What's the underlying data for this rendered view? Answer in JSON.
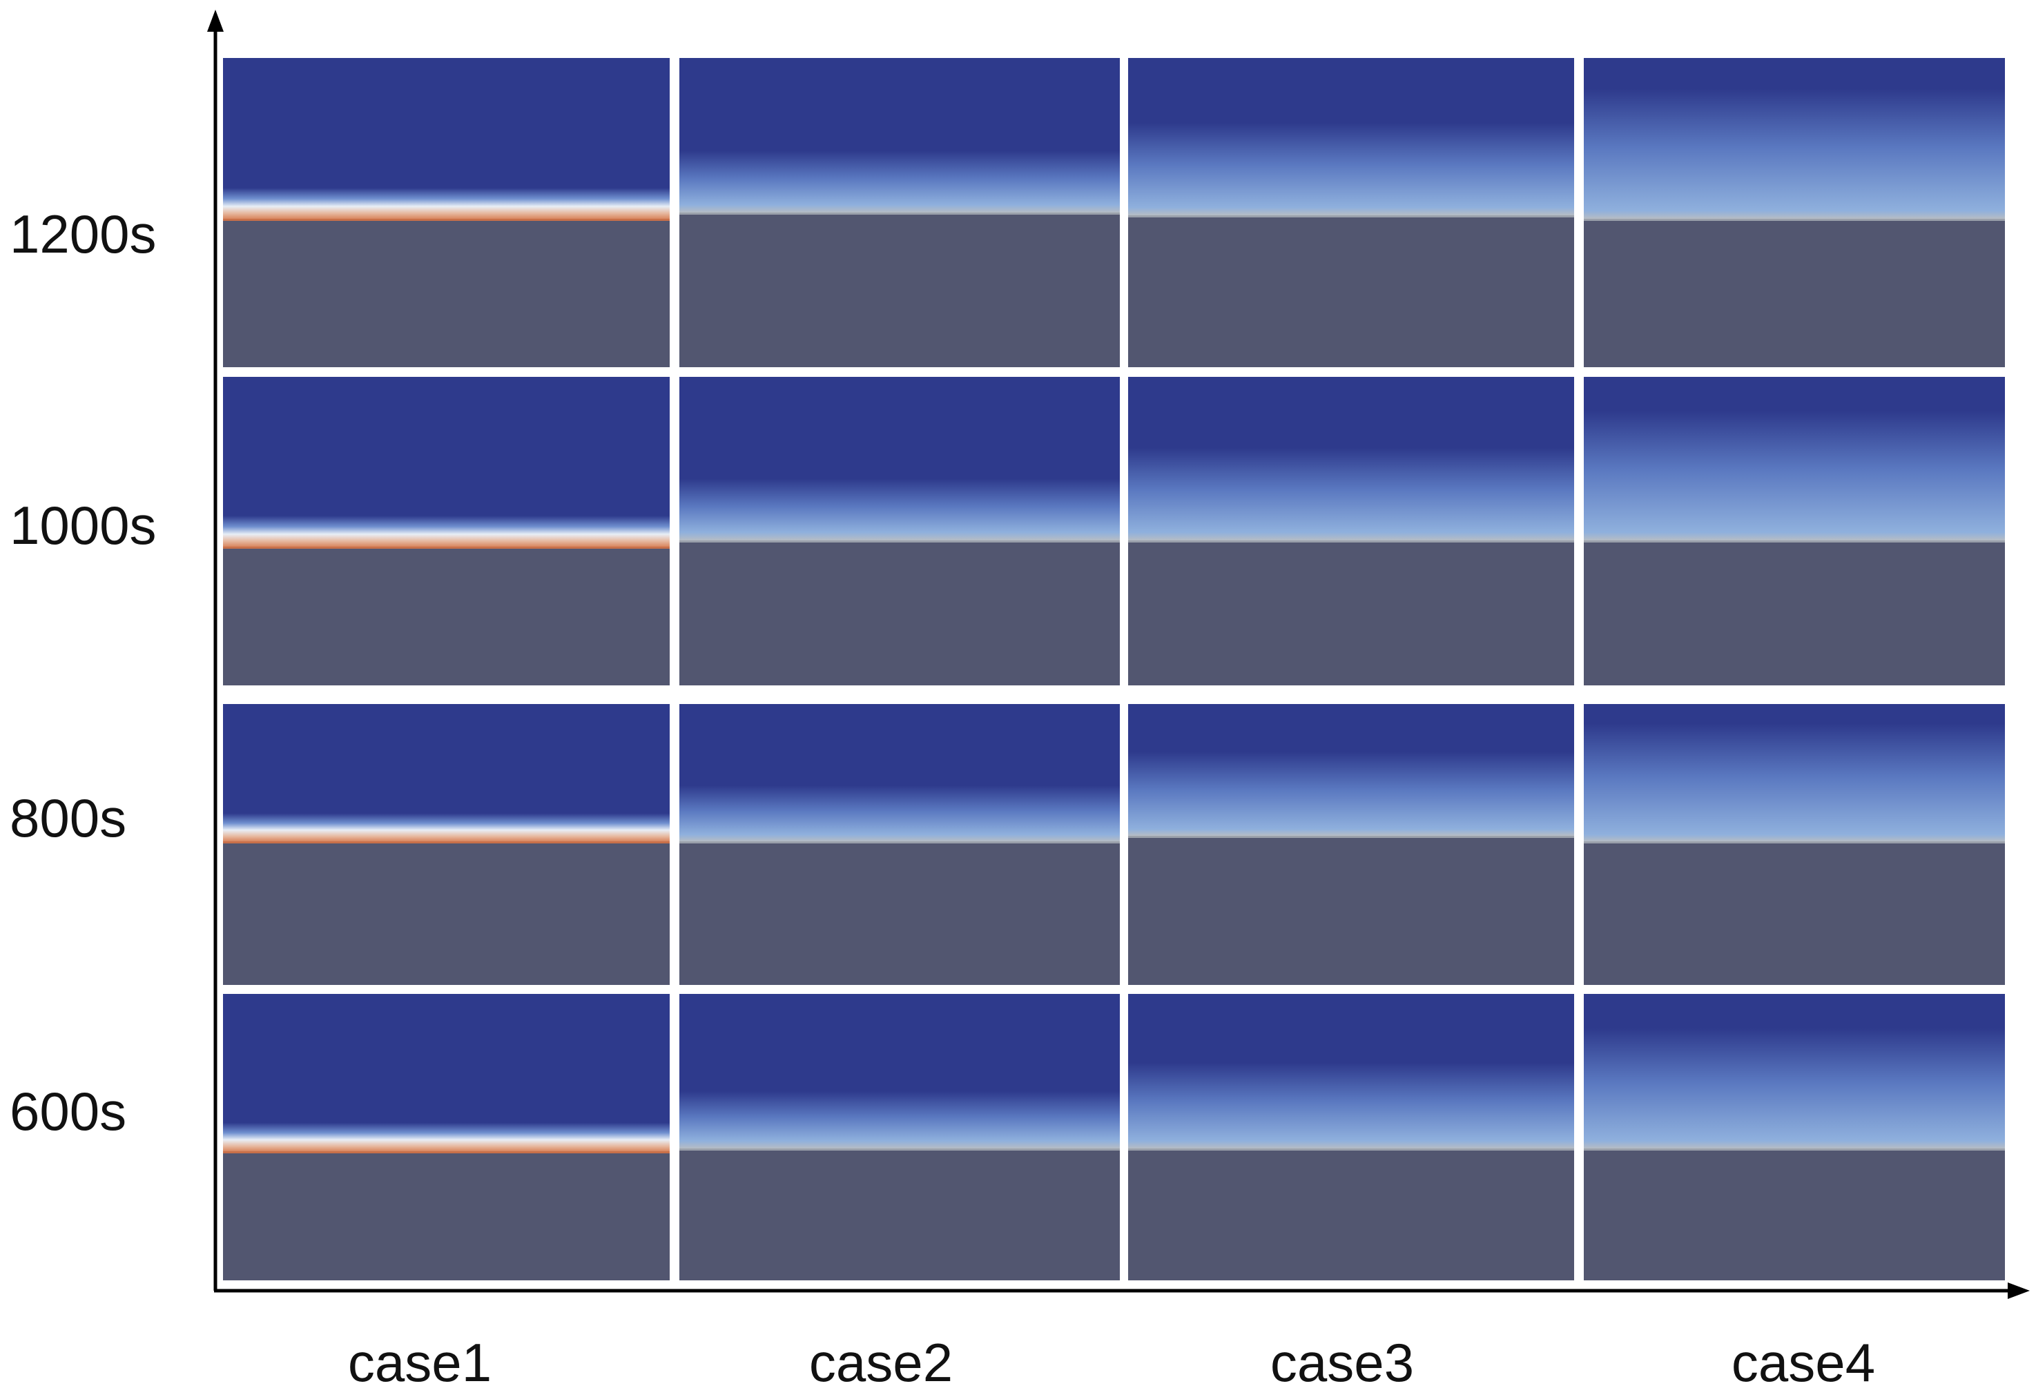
{
  "rows": [
    {
      "label": "1200s"
    },
    {
      "label": "1000s"
    },
    {
      "label": "800s"
    },
    {
      "label": "600s"
    }
  ],
  "columns": [
    {
      "label": "case1"
    },
    {
      "label": "case2"
    },
    {
      "label": "case3"
    },
    {
      "label": "case4"
    }
  ],
  "colors": {
    "deep_blue": "#2e3a8c",
    "light_blue": "#8fb0dd",
    "warm_band": "#d9865f",
    "solid_gray": "#525670",
    "axis": "#000000"
  }
}
